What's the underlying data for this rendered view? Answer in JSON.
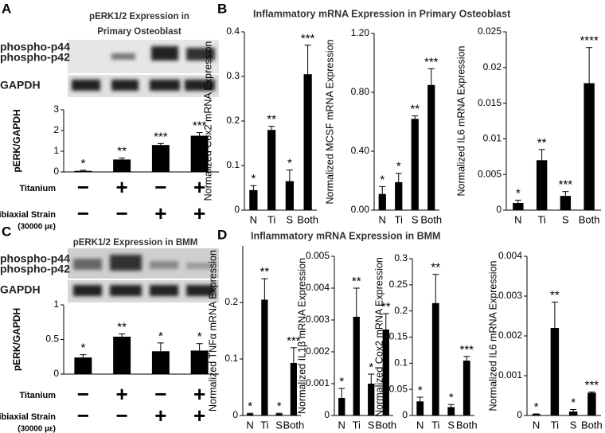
{
  "panel_labels": [
    "A",
    "B",
    "C",
    "D"
  ],
  "panel_titles": [
    "Inflammatory mRNA Expression in Primary Osteoblast",
    "Inflammatory mRNA Expression in BMM"
  ],
  "blots": [
    {
      "title_lines": [
        "pERK1/2 Expression in",
        "Primary Osteoblast"
      ],
      "bands": [
        "phospho-p44",
        "phospho-p42",
        "GAPDH"
      ]
    },
    {
      "title_lines": [
        "pERK1/2 Expression in BMM"
      ],
      "bands": [
        "phospho-p44",
        "phospho-p42",
        "GAPDH"
      ]
    }
  ],
  "conditions": [
    {
      "rows": [
        {
          "name": "Titanium",
          "signs": [
            "−",
            "+",
            "−",
            "+"
          ]
        },
        {
          "name": "Equibiaxial Strain",
          "sub": "(30000 µε)",
          "signs": [
            "−",
            "−",
            "+",
            "+"
          ]
        }
      ]
    },
    {
      "rows": [
        {
          "name": "Titanium",
          "signs": [
            "−",
            "+",
            "−",
            "+"
          ]
        },
        {
          "name": "Equibiaxial Strain",
          "sub": "(30000 µε)",
          "signs": [
            "−",
            "−",
            "+",
            "+"
          ]
        }
      ]
    }
  ],
  "chart_data": [
    {
      "type": "bar",
      "ylabel": "pERK/GAPDH",
      "values": [
        0.05,
        0.6,
        1.3,
        1.75
      ],
      "errors": [
        0.03,
        0.07,
        0.07,
        0.15
      ],
      "markers": [
        "*",
        "**",
        "***",
        "***"
      ],
      "ylim": [
        0,
        3
      ],
      "yticks": [
        0,
        1,
        2,
        3
      ],
      "color": "#000000"
    },
    {
      "type": "bar",
      "ylabel": "Normalized Cox2 mRNA Expression",
      "categories": [
        "N",
        "Ti",
        "S",
        "Both"
      ],
      "values": [
        0.045,
        0.18,
        0.065,
        0.305
      ],
      "errors": [
        0.01,
        0.008,
        0.025,
        0.065
      ],
      "markers": [
        "*",
        "**",
        "*",
        "***"
      ],
      "ylim": [
        0,
        0.4
      ],
      "yticks": [
        0,
        0.1,
        0.2,
        0.3,
        0.4
      ],
      "color": "#000000"
    },
    {
      "type": "bar",
      "ylabel": "Normalized MCSF mRNA Expression",
      "categories": [
        "N",
        "Ti",
        "S",
        "Both"
      ],
      "values": [
        0.11,
        0.19,
        0.62,
        0.85
      ],
      "errors": [
        0.05,
        0.06,
        0.02,
        0.11
      ],
      "markers": [
        "*",
        "*",
        "**",
        "***"
      ],
      "ylim": [
        0,
        1.2
      ],
      "yticks": [
        {
          "value": 0,
          "label": "0.00"
        },
        {
          "value": 0.4,
          "label": "0.40"
        },
        {
          "value": 0.8,
          "label": "0.80"
        },
        {
          "value": 1.2,
          "label": "1.20"
        }
      ],
      "color": "#000000"
    },
    {
      "type": "bar",
      "ylabel": "Normalized IL6 mRNA Expression",
      "categories": [
        "N",
        "Ti",
        "S",
        "Both"
      ],
      "values": [
        0.001,
        0.007,
        0.002,
        0.0178
      ],
      "errors": [
        0.0004,
        0.0015,
        0.0006,
        0.005
      ],
      "markers": [
        "*",
        "**",
        "***",
        "****"
      ],
      "ylim": [
        0,
        0.025
      ],
      "yticks": [
        0,
        0.005,
        0.01,
        0.015,
        0.02,
        0.025
      ],
      "color": "#000000"
    },
    {
      "type": "bar",
      "ylabel": "pERK/GAPDH",
      "values": [
        0.24,
        0.54,
        0.33,
        0.34
      ],
      "errors": [
        0.04,
        0.04,
        0.12,
        0.1
      ],
      "markers": [
        "*",
        "**",
        "*",
        "*"
      ],
      "ylim": [
        0,
        1
      ],
      "yticks": [
        0,
        0.5,
        1
      ],
      "color": "#000000"
    },
    {
      "type": "bar",
      "ylabel": "Normalized TNFα  mRNA Expression",
      "categories": [
        "N",
        "Ti",
        "S",
        "Both"
      ],
      "values": [
        0.003,
        0.205,
        0.003,
        0.093
      ],
      "errors": [
        0.001,
        0.037,
        0.001,
        0.027
      ],
      "markers": [
        "*",
        "**",
        "*",
        "***"
      ],
      "ylim": [
        0,
        0.3
      ],
      "yticks": [
        0,
        0.1,
        0.2
      ],
      "color": "#000000"
    },
    {
      "type": "bar",
      "ylabel": "Normalized IL1β mRNA Expression",
      "categories": [
        "N",
        "Ti",
        "S",
        "Both"
      ],
      "values": [
        0.00055,
        0.0031,
        0.001,
        0.0027
      ],
      "errors": [
        0.0003,
        0.0009,
        0.0003,
        0.0005
      ],
      "markers": [
        "*",
        "**",
        "*",
        "**"
      ],
      "ylim": [
        0,
        0.005
      ],
      "yticks": [
        0,
        0.001,
        0.002,
        0.003,
        0.004,
        0.005
      ],
      "color": "#000000"
    },
    {
      "type": "bar",
      "ylabel": "Normalized Cox2 mRNA Expression",
      "categories": [
        "N",
        "Ti",
        "S",
        "Both"
      ],
      "values": [
        0.027,
        0.215,
        0.016,
        0.105
      ],
      "errors": [
        0.008,
        0.055,
        0.005,
        0.008
      ],
      "markers": [
        "*",
        "**",
        "*",
        "***"
      ],
      "ylim": [
        0,
        0.3
      ],
      "yticks": [
        0,
        0.05,
        0.1,
        0.15,
        0.2,
        0.25,
        0.3
      ],
      "color": "#000000"
    },
    {
      "type": "bar",
      "ylabel": "Normalized IL6 mRNA Expression",
      "categories": [
        "N",
        "Ti",
        "S",
        "Both"
      ],
      "values": [
        3e-05,
        0.0022,
        0.0001,
        0.00057
      ],
      "errors": [
        1e-05,
        0.00065,
        5e-05,
        2e-05
      ],
      "markers": [
        "*",
        "**",
        "*",
        "***"
      ],
      "ylim": [
        0,
        0.004
      ],
      "yticks": [
        0,
        0.001,
        0.002,
        0.003,
        0.004
      ],
      "color": "#000000"
    }
  ]
}
